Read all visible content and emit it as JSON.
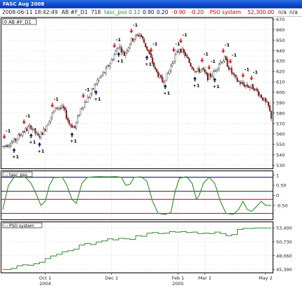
{
  "window": {
    "title": "FASC Aug 2008"
  },
  "infobar": {
    "timestamp": "2008-06-11 18:42:49",
    "symbol": "AB #F_D1",
    "count": "718",
    "indicator_name": "tasc_pso",
    "v1": "0.12",
    "v2": "0.90",
    "v3": "0.20",
    "v4": "-0.90",
    "v5": "-0.20",
    "system_name": "PSO system",
    "system_value": "52,300.00",
    "na1": "n/a",
    "na2": "n/a"
  },
  "colors": {
    "bull": "#ffffff",
    "bear": "#8b1a1a",
    "oscillator": "#2f8a2f",
    "equity": "#2f8a2f",
    "upper_level": "#000080",
    "lower_level": "#c00000",
    "buy_arrow": "#0a1a6a",
    "sell_arrow": "#e02020"
  },
  "panes": {
    "price_label": "0 AB #F_D1",
    "osc_label": "tasc_pso",
    "equity_label": "PSO system"
  },
  "axes": {
    "price_ticks": [
      "670",
      "660",
      "650",
      "640",
      "630",
      "620",
      "610",
      "600",
      "590",
      "580",
      "570",
      "560",
      "550",
      "540",
      "530"
    ],
    "osc_ticks": [
      "1",
      "0.50",
      "0",
      "-0.50"
    ],
    "equity_ticks": [
      "53,400",
      "50,730",
      "48,060",
      "45,390"
    ],
    "x_ticks": [
      {
        "label": "Oct 1",
        "year": "2004"
      },
      {
        "label": "Dec 1",
        "year": ""
      },
      {
        "label": "Feb 1",
        "year": "2005"
      },
      {
        "label": "Mar 1",
        "year": ""
      },
      {
        "label": "May 2",
        "year": ""
      }
    ]
  },
  "chart_data": [
    {
      "type": "candlestick",
      "ylim": [
        527,
        671
      ],
      "trend_points": [
        [
          0,
          548
        ],
        [
          8,
          553
        ],
        [
          14,
          562
        ],
        [
          20,
          567
        ],
        [
          25,
          557
        ],
        [
          29,
          563
        ],
        [
          33,
          574
        ],
        [
          38,
          586
        ],
        [
          43,
          584
        ],
        [
          47,
          570
        ],
        [
          51,
          566
        ],
        [
          55,
          584
        ],
        [
          61,
          596
        ],
        [
          67,
          611
        ],
        [
          73,
          621
        ],
        [
          78,
          633
        ],
        [
          82,
          645
        ],
        [
          86,
          636
        ],
        [
          91,
          650
        ],
        [
          97,
          656
        ],
        [
          103,
          639
        ],
        [
          108,
          621
        ],
        [
          113,
          610
        ],
        [
          117,
          618
        ],
        [
          121,
          632
        ],
        [
          125,
          642
        ],
        [
          129,
          636
        ],
        [
          133,
          626
        ],
        [
          137,
          620
        ],
        [
          141,
          622
        ],
        [
          145,
          614
        ],
        [
          149,
          618
        ],
        [
          153,
          628
        ],
        [
          157,
          632
        ],
        [
          161,
          621
        ],
        [
          165,
          612
        ],
        [
          169,
          608
        ],
        [
          173,
          606
        ],
        [
          178,
          604
        ],
        [
          183,
          596
        ],
        [
          188,
          586
        ],
        [
          190,
          576
        ]
      ],
      "buy_signals": [
        {
          "x": 8,
          "label": "+1"
        },
        {
          "x": 20,
          "label": "+1"
        },
        {
          "x": 26,
          "label": "+1"
        },
        {
          "x": 49,
          "label": "+1"
        },
        {
          "x": 66,
          "label": "+1"
        },
        {
          "x": 82,
          "label": "+1"
        },
        {
          "x": 102,
          "label": "+1"
        },
        {
          "x": 115,
          "label": "+1"
        },
        {
          "x": 136,
          "label": "+1"
        },
        {
          "x": 150,
          "label": "+1"
        }
      ],
      "sell_signals": [
        {
          "x": 1,
          "label": "-1"
        },
        {
          "x": 15,
          "label": "-1"
        },
        {
          "x": 35,
          "label": "-1"
        },
        {
          "x": 57,
          "label": "-1"
        },
        {
          "x": 79,
          "label": "-1"
        },
        {
          "x": 91,
          "label": "-1"
        },
        {
          "x": 105,
          "label": "-1"
        },
        {
          "x": 121,
          "label": "-1"
        },
        {
          "x": 126,
          "label": "-1"
        },
        {
          "x": 141,
          "label": "-1"
        },
        {
          "x": 146,
          "label": "-1"
        },
        {
          "x": 156,
          "label": "-1"
        },
        {
          "x": 161,
          "label": "-1"
        },
        {
          "x": 170,
          "label": "-1"
        },
        {
          "x": 176,
          "label": "-1"
        }
      ]
    },
    {
      "type": "line",
      "name": "tasc_pso",
      "ylim": [
        -1.2,
        1.2
      ],
      "levels": [
        0.9,
        0.2,
        -0.2,
        -0.9
      ],
      "points": [
        [
          0,
          -0.7
        ],
        [
          4,
          0.5
        ],
        [
          8,
          0.9
        ],
        [
          12,
          0.92
        ],
        [
          16,
          0.9
        ],
        [
          20,
          0.6
        ],
        [
          24,
          0.0
        ],
        [
          27,
          -0.5
        ],
        [
          30,
          -0.3
        ],
        [
          33,
          0.5
        ],
        [
          36,
          0.88
        ],
        [
          42,
          0.9
        ],
        [
          45,
          0.55
        ],
        [
          49,
          -0.2
        ],
        [
          52,
          -0.4
        ],
        [
          56,
          0.6
        ],
        [
          60,
          0.9
        ],
        [
          68,
          0.93
        ],
        [
          74,
          0.92
        ],
        [
          80,
          0.93
        ],
        [
          84,
          0.9
        ],
        [
          87,
          0.5
        ],
        [
          90,
          0.55
        ],
        [
          93,
          0.9
        ],
        [
          98,
          0.92
        ],
        [
          102,
          0.7
        ],
        [
          106,
          -0.3
        ],
        [
          110,
          -0.9
        ],
        [
          115,
          -0.95
        ],
        [
          119,
          -0.85
        ],
        [
          122,
          0.2
        ],
        [
          125,
          0.85
        ],
        [
          130,
          0.93
        ],
        [
          134,
          0.6
        ],
        [
          137,
          -0.2
        ],
        [
          139,
          0.0
        ],
        [
          142,
          0.6
        ],
        [
          146,
          0.9
        ],
        [
          150,
          0.6
        ],
        [
          154,
          -0.3
        ],
        [
          158,
          -0.9
        ],
        [
          163,
          -0.95
        ],
        [
          167,
          -0.7
        ],
        [
          170,
          -0.3
        ],
        [
          173,
          -0.7
        ],
        [
          176,
          -0.8
        ],
        [
          179,
          -0.6
        ],
        [
          183,
          -0.3
        ],
        [
          186,
          -0.5
        ],
        [
          190,
          -0.5
        ]
      ]
    },
    {
      "type": "line",
      "name": "PSO system",
      "ylim": [
        44800,
        54500
      ],
      "points": [
        [
          0,
          45390
        ],
        [
          6,
          45600
        ],
        [
          10,
          46100
        ],
        [
          14,
          46300
        ],
        [
          18,
          46200
        ],
        [
          22,
          46500
        ],
        [
          26,
          46800
        ],
        [
          30,
          47500
        ],
        [
          34,
          48000
        ],
        [
          38,
          48300
        ],
        [
          42,
          48800
        ],
        [
          46,
          49000
        ],
        [
          50,
          49300
        ],
        [
          54,
          50100
        ],
        [
          58,
          50400
        ],
        [
          62,
          50200
        ],
        [
          66,
          50700
        ],
        [
          70,
          50900
        ],
        [
          74,
          51300
        ],
        [
          78,
          51100
        ],
        [
          82,
          51400
        ],
        [
          86,
          51300
        ],
        [
          90,
          51200
        ],
        [
          94,
          51900
        ],
        [
          98,
          51800
        ],
        [
          102,
          52400
        ],
        [
          106,
          52500
        ],
        [
          110,
          52300
        ],
        [
          114,
          52400
        ],
        [
          118,
          52700
        ],
        [
          122,
          52600
        ],
        [
          126,
          52700
        ],
        [
          130,
          52500
        ],
        [
          134,
          52600
        ],
        [
          138,
          52300
        ],
        [
          142,
          52400
        ],
        [
          146,
          52300
        ],
        [
          150,
          52600
        ],
        [
          154,
          52300
        ],
        [
          158,
          51900
        ],
        [
          162,
          52100
        ],
        [
          166,
          53100
        ],
        [
          170,
          53300
        ],
        [
          174,
          53300
        ],
        [
          178,
          53400
        ],
        [
          182,
          53400
        ],
        [
          186,
          53400
        ],
        [
          190,
          53400
        ]
      ]
    }
  ]
}
